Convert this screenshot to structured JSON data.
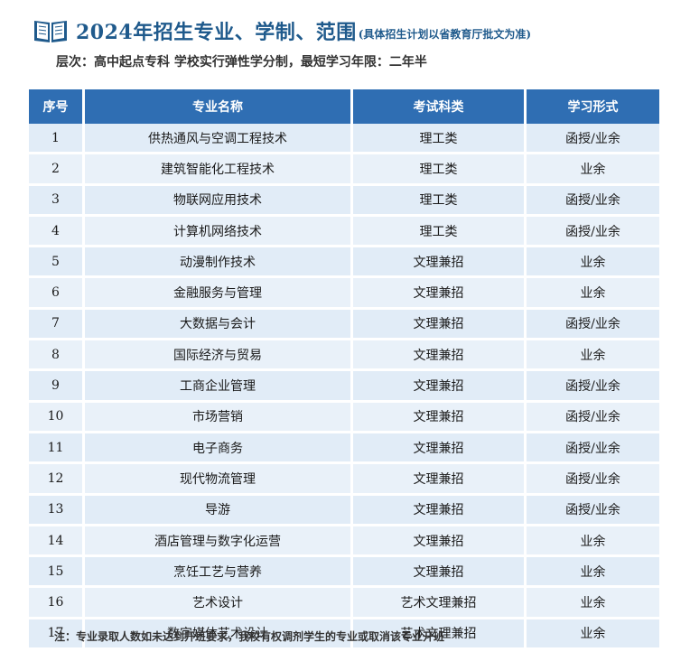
{
  "header": {
    "title": "2024年招生专业、学制、范围",
    "note": "(具体招生计划以省教育厅批文为准)"
  },
  "level_line": "层次：高中起点专科 学校实行弹性学分制，最短学习年限：二年半",
  "table": {
    "columns": [
      "序号",
      "专业名称",
      "考试科类",
      "学习形式"
    ],
    "rows": [
      [
        "1",
        "供热通风与空调工程技术",
        "理工类",
        "函授/业余"
      ],
      [
        "2",
        "建筑智能化工程技术",
        "理工类",
        "业余"
      ],
      [
        "3",
        "物联网应用技术",
        "理工类",
        "函授/业余"
      ],
      [
        "4",
        "计算机网络技术",
        "理工类",
        "函授/业余"
      ],
      [
        "5",
        "动漫制作技术",
        "文理兼招",
        "业余"
      ],
      [
        "6",
        "金融服务与管理",
        "文理兼招",
        "业余"
      ],
      [
        "7",
        "大数据与会计",
        "文理兼招",
        "函授/业余"
      ],
      [
        "8",
        "国际经济与贸易",
        "文理兼招",
        "业余"
      ],
      [
        "9",
        "工商企业管理",
        "文理兼招",
        "函授/业余"
      ],
      [
        "10",
        "市场营销",
        "文理兼招",
        "函授/业余"
      ],
      [
        "11",
        "电子商务",
        "文理兼招",
        "函授/业余"
      ],
      [
        "12",
        "现代物流管理",
        "文理兼招",
        "函授/业余"
      ],
      [
        "13",
        "导游",
        "文理兼招",
        "函授/业余"
      ],
      [
        "14",
        "酒店管理与数字化运营",
        "文理兼招",
        "业余"
      ],
      [
        "15",
        "烹饪工艺与营养",
        "文理兼招",
        "业余"
      ],
      [
        "16",
        "艺术设计",
        "艺术文理兼招",
        "业余"
      ],
      [
        "17",
        "数字媒体艺术设计",
        "艺术文理兼招",
        "业余"
      ]
    ]
  },
  "footnote": "注：专业录取人数如未达到开班要求，我校有权调剂学生的专业或取消该专业开班",
  "colors": {
    "accent": "#1f5a8c",
    "header_bg": "#2f6eb3",
    "row_bg": "#e1ecf7"
  },
  "icons": {
    "header_icon": "open-book-icon"
  }
}
